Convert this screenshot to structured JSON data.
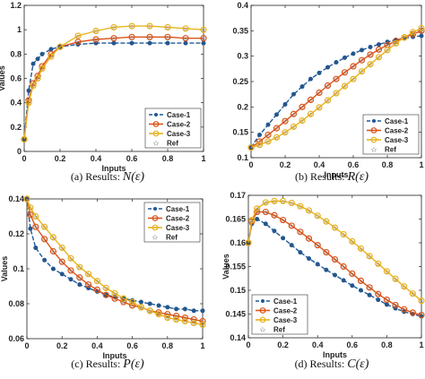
{
  "legend_labels": [
    "Case-1",
    "Case-2",
    "Case-3",
    "Ref"
  ],
  "colors": {
    "case1": "#1f5a99",
    "case2": "#d9541a",
    "case3": "#e8b21f",
    "ref": "#444444"
  },
  "chart_data": [
    {
      "type": "line",
      "caption": "(a) Results:",
      "caption_math": "N(ε)",
      "xlabel": "Inputs",
      "ylabel": "Values",
      "xlim": [
        0,
        1
      ],
      "ylim": [
        0,
        1.2
      ],
      "xticks": [
        "0",
        "0.2",
        "0.4",
        "0.6",
        "0.8",
        "1"
      ],
      "yticks": [
        "0",
        "0.2",
        "0.4",
        "0.6",
        "0.8",
        "1",
        "1.2"
      ],
      "legend_position": "bottom-right",
      "series": [
        {
          "name": "Case-1",
          "points": [
            [
              0,
              0.1
            ],
            [
              0.025,
              0.5
            ],
            [
              0.05,
              0.72
            ],
            [
              0.075,
              0.76
            ],
            [
              0.1,
              0.8
            ],
            [
              0.15,
              0.84
            ],
            [
              0.2,
              0.86
            ],
            [
              0.3,
              0.88
            ],
            [
              0.4,
              0.89
            ],
            [
              0.5,
              0.89
            ],
            [
              0.6,
              0.89
            ],
            [
              0.7,
              0.89
            ],
            [
              0.8,
              0.89
            ],
            [
              0.9,
              0.89
            ],
            [
              1,
              0.89
            ]
          ]
        },
        {
          "name": "Case-2",
          "points": [
            [
              0,
              0.1
            ],
            [
              0.025,
              0.42
            ],
            [
              0.05,
              0.56
            ],
            [
              0.075,
              0.62
            ],
            [
              0.1,
              0.7
            ],
            [
              0.15,
              0.8
            ],
            [
              0.2,
              0.86
            ],
            [
              0.3,
              0.9
            ],
            [
              0.4,
              0.92
            ],
            [
              0.5,
              0.93
            ],
            [
              0.6,
              0.94
            ],
            [
              0.7,
              0.94
            ],
            [
              0.8,
              0.94
            ],
            [
              0.9,
              0.93
            ],
            [
              1,
              0.93
            ]
          ]
        },
        {
          "name": "Case-3",
          "points": [
            [
              0,
              0.1
            ],
            [
              0.025,
              0.4
            ],
            [
              0.05,
              0.54
            ],
            [
              0.075,
              0.6
            ],
            [
              0.1,
              0.68
            ],
            [
              0.15,
              0.78
            ],
            [
              0.2,
              0.86
            ],
            [
              0.3,
              0.95
            ],
            [
              0.4,
              0.99
            ],
            [
              0.5,
              1.02
            ],
            [
              0.6,
              1.03
            ],
            [
              0.7,
              1.03
            ],
            [
              0.8,
              1.02
            ],
            [
              0.9,
              1.01
            ],
            [
              1,
              1.0
            ]
          ]
        }
      ]
    },
    {
      "type": "line",
      "caption": "(b) Results:",
      "caption_math": "R(ε)",
      "xlabel": "Inputs",
      "ylabel": "",
      "xlim": [
        0,
        1
      ],
      "ylim": [
        0.1,
        0.4
      ],
      "xticks": [
        "0",
        "0.2",
        "0.4",
        "0.6",
        "0.8",
        "1"
      ],
      "yticks": [
        "0.1",
        "0.15",
        "0.2",
        "0.25",
        "0.3",
        "0.35",
        "0.4"
      ],
      "legend_position": "bottom-right",
      "series": [
        {
          "name": "Case-1",
          "points": [
            [
              0,
              0.12
            ],
            [
              0.05,
              0.145
            ],
            [
              0.1,
              0.165
            ],
            [
              0.15,
              0.185
            ],
            [
              0.2,
              0.205
            ],
            [
              0.25,
              0.225
            ],
            [
              0.3,
              0.24
            ],
            [
              0.35,
              0.255
            ],
            [
              0.4,
              0.267
            ],
            [
              0.45,
              0.278
            ],
            [
              0.5,
              0.288
            ],
            [
              0.55,
              0.297
            ],
            [
              0.6,
              0.305
            ],
            [
              0.65,
              0.312
            ],
            [
              0.7,
              0.318
            ],
            [
              0.75,
              0.323
            ],
            [
              0.8,
              0.328
            ],
            [
              0.85,
              0.332
            ],
            [
              0.9,
              0.335
            ],
            [
              0.95,
              0.338
            ],
            [
              1,
              0.34
            ]
          ]
        },
        {
          "name": "Case-2",
          "points": [
            [
              0,
              0.12
            ],
            [
              0.05,
              0.132
            ],
            [
              0.1,
              0.145
            ],
            [
              0.15,
              0.158
            ],
            [
              0.2,
              0.172
            ],
            [
              0.25,
              0.186
            ],
            [
              0.3,
              0.2
            ],
            [
              0.35,
              0.214
            ],
            [
              0.4,
              0.228
            ],
            [
              0.45,
              0.242
            ],
            [
              0.5,
              0.255
            ],
            [
              0.55,
              0.268
            ],
            [
              0.6,
              0.28
            ],
            [
              0.65,
              0.292
            ],
            [
              0.7,
              0.303
            ],
            [
              0.75,
              0.313
            ],
            [
              0.8,
              0.322
            ],
            [
              0.85,
              0.33
            ],
            [
              0.9,
              0.337
            ],
            [
              0.95,
              0.343
            ],
            [
              1,
              0.35
            ]
          ]
        },
        {
          "name": "Case-3",
          "points": [
            [
              0,
              0.12
            ],
            [
              0.05,
              0.125
            ],
            [
              0.1,
              0.132
            ],
            [
              0.15,
              0.14
            ],
            [
              0.2,
              0.15
            ],
            [
              0.25,
              0.161
            ],
            [
              0.3,
              0.173
            ],
            [
              0.35,
              0.186
            ],
            [
              0.4,
              0.199
            ],
            [
              0.45,
              0.213
            ],
            [
              0.5,
              0.227
            ],
            [
              0.55,
              0.241
            ],
            [
              0.6,
              0.255
            ],
            [
              0.65,
              0.27
            ],
            [
              0.7,
              0.284
            ],
            [
              0.75,
              0.298
            ],
            [
              0.8,
              0.312
            ],
            [
              0.85,
              0.325
            ],
            [
              0.9,
              0.337
            ],
            [
              0.95,
              0.347
            ],
            [
              1,
              0.355
            ]
          ]
        }
      ]
    },
    {
      "type": "line",
      "caption": "(c) Results:",
      "caption_math": "P(ε)",
      "xlabel": "Inputs",
      "ylabel": "Values",
      "xlim": [
        0,
        1
      ],
      "ylim": [
        0.06,
        0.14
      ],
      "xticks": [
        "0",
        "0.2",
        "0.4",
        "0.6",
        "0.8",
        "1"
      ],
      "yticks": [
        "0.06",
        "0.08",
        "0.1",
        "0.12",
        "0.14"
      ],
      "legend_position": "top-right",
      "series": [
        {
          "name": "Case-1",
          "points": [
            [
              0,
              0.14
            ],
            [
              0.02,
              0.123
            ],
            [
              0.05,
              0.112
            ],
            [
              0.1,
              0.105
            ],
            [
              0.15,
              0.1
            ],
            [
              0.2,
              0.097
            ],
            [
              0.25,
              0.094
            ],
            [
              0.3,
              0.091
            ],
            [
              0.35,
              0.089
            ],
            [
              0.4,
              0.087
            ],
            [
              0.45,
              0.085
            ],
            [
              0.5,
              0.084
            ],
            [
              0.55,
              0.083
            ],
            [
              0.6,
              0.082
            ],
            [
              0.65,
              0.081
            ],
            [
              0.7,
              0.08
            ],
            [
              0.75,
              0.079
            ],
            [
              0.8,
              0.078
            ],
            [
              0.85,
              0.077
            ],
            [
              0.9,
              0.077
            ],
            [
              0.95,
              0.076
            ],
            [
              1,
              0.076
            ]
          ]
        },
        {
          "name": "Case-2",
          "points": [
            [
              0,
              0.14
            ],
            [
              0.02,
              0.131
            ],
            [
              0.05,
              0.124
            ],
            [
              0.1,
              0.117
            ],
            [
              0.15,
              0.11
            ],
            [
              0.2,
              0.104
            ],
            [
              0.25,
              0.099
            ],
            [
              0.3,
              0.095
            ],
            [
              0.35,
              0.091
            ],
            [
              0.4,
              0.088
            ],
            [
              0.45,
              0.085
            ],
            [
              0.5,
              0.083
            ],
            [
              0.55,
              0.081
            ],
            [
              0.6,
              0.079
            ],
            [
              0.65,
              0.078
            ],
            [
              0.7,
              0.076
            ],
            [
              0.75,
              0.075
            ],
            [
              0.8,
              0.074
            ],
            [
              0.85,
              0.073
            ],
            [
              0.9,
              0.072
            ],
            [
              0.95,
              0.071
            ],
            [
              1,
              0.07
            ]
          ]
        },
        {
          "name": "Case-3",
          "points": [
            [
              0,
              0.14
            ],
            [
              0.02,
              0.135
            ],
            [
              0.05,
              0.13
            ],
            [
              0.1,
              0.124
            ],
            [
              0.15,
              0.118
            ],
            [
              0.2,
              0.112
            ],
            [
              0.25,
              0.106
            ],
            [
              0.3,
              0.101
            ],
            [
              0.35,
              0.097
            ],
            [
              0.4,
              0.093
            ],
            [
              0.45,
              0.089
            ],
            [
              0.5,
              0.086
            ],
            [
              0.55,
              0.083
            ],
            [
              0.6,
              0.081
            ],
            [
              0.65,
              0.078
            ],
            [
              0.7,
              0.076
            ],
            [
              0.75,
              0.074
            ],
            [
              0.8,
              0.072
            ],
            [
              0.85,
              0.071
            ],
            [
              0.9,
              0.07
            ],
            [
              0.95,
              0.069
            ],
            [
              1,
              0.068
            ]
          ]
        }
      ]
    },
    {
      "type": "line",
      "caption": "(d) Results:",
      "caption_math": "C(ε)",
      "xlabel": "Inputs",
      "ylabel": "Values",
      "xlim": [
        0,
        1
      ],
      "ylim": [
        0.14,
        0.17
      ],
      "xticks": [
        "0",
        "0.2",
        "0.4",
        "0.6",
        "0.8",
        "1"
      ],
      "yticks": [
        "0.14",
        "0.145",
        "0.15",
        "0.155",
        "0.16",
        "0.165",
        "0.17"
      ],
      "legend_position": "bottom-left",
      "series": [
        {
          "name": "Case-1",
          "points": [
            [
              0,
              0.16
            ],
            [
              0.02,
              0.164
            ],
            [
              0.05,
              0.165
            ],
            [
              0.1,
              0.164
            ],
            [
              0.15,
              0.1625
            ],
            [
              0.2,
              0.161
            ],
            [
              0.25,
              0.1595
            ],
            [
              0.3,
              0.158
            ],
            [
              0.35,
              0.1567
            ],
            [
              0.4,
              0.1555
            ],
            [
              0.45,
              0.1543
            ],
            [
              0.5,
              0.1532
            ],
            [
              0.55,
              0.1521
            ],
            [
              0.6,
              0.151
            ],
            [
              0.65,
              0.15
            ],
            [
              0.7,
              0.149
            ],
            [
              0.75,
              0.148
            ],
            [
              0.8,
              0.147
            ],
            [
              0.85,
              0.1462
            ],
            [
              0.9,
              0.1455
            ],
            [
              0.95,
              0.145
            ],
            [
              1,
              0.1445
            ]
          ]
        },
        {
          "name": "Case-2",
          "points": [
            [
              0,
              0.16
            ],
            [
              0.02,
              0.1645
            ],
            [
              0.05,
              0.1665
            ],
            [
              0.1,
              0.1665
            ],
            [
              0.15,
              0.1658
            ],
            [
              0.2,
              0.1648
            ],
            [
              0.25,
              0.1636
            ],
            [
              0.3,
              0.1623
            ],
            [
              0.35,
              0.1609
            ],
            [
              0.4,
              0.1595
            ],
            [
              0.45,
              0.158
            ],
            [
              0.5,
              0.1565
            ],
            [
              0.55,
              0.155
            ],
            [
              0.6,
              0.1535
            ],
            [
              0.65,
              0.152
            ],
            [
              0.7,
              0.1506
            ],
            [
              0.75,
              0.1492
            ],
            [
              0.8,
              0.148
            ],
            [
              0.85,
              0.1469
            ],
            [
              0.9,
              0.146
            ],
            [
              0.95,
              0.1453
            ],
            [
              1,
              0.1448
            ]
          ]
        },
        {
          "name": "Case-3",
          "points": [
            [
              0,
              0.16
            ],
            [
              0.02,
              0.1648
            ],
            [
              0.05,
              0.1672
            ],
            [
              0.1,
              0.1685
            ],
            [
              0.15,
              0.1688
            ],
            [
              0.2,
              0.1688
            ],
            [
              0.25,
              0.1684
            ],
            [
              0.3,
              0.1677
            ],
            [
              0.35,
              0.1668
            ],
            [
              0.4,
              0.1657
            ],
            [
              0.45,
              0.1645
            ],
            [
              0.5,
              0.1632
            ],
            [
              0.55,
              0.1618
            ],
            [
              0.6,
              0.1603
            ],
            [
              0.65,
              0.1588
            ],
            [
              0.7,
              0.1572
            ],
            [
              0.75,
              0.1556
            ],
            [
              0.8,
              0.154
            ],
            [
              0.85,
              0.1524
            ],
            [
              0.9,
              0.1508
            ],
            [
              0.95,
              0.1493
            ],
            [
              1,
              0.1478
            ]
          ]
        }
      ]
    }
  ]
}
